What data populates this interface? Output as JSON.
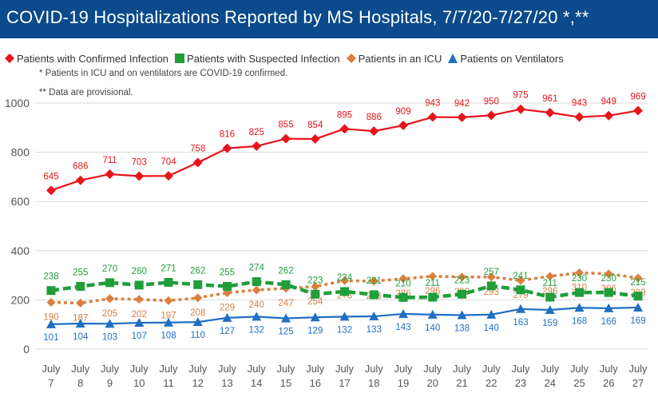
{
  "chart_data": {
    "type": "line",
    "title": "COVID-19 Hospitalizations Reported by MS Hospitals, 7/7/20-7/27/20 *,**",
    "notes": [
      "* Patients in ICU and on ventilators are COVID-19 confirmed.",
      "** Data are provisional."
    ],
    "categories": [
      [
        "July",
        "7"
      ],
      [
        "July",
        "8"
      ],
      [
        "July",
        "9"
      ],
      [
        "July",
        "10"
      ],
      [
        "July",
        "11"
      ],
      [
        "July",
        "12"
      ],
      [
        "July",
        "13"
      ],
      [
        "July",
        "14"
      ],
      [
        "July",
        "15"
      ],
      [
        "July",
        "16"
      ],
      [
        "July",
        "17"
      ],
      [
        "July",
        "18"
      ],
      [
        "July",
        "19"
      ],
      [
        "July",
        "20"
      ],
      [
        "July",
        "21"
      ],
      [
        "July",
        "22"
      ],
      [
        "July",
        "23"
      ],
      [
        "July",
        "24"
      ],
      [
        "July",
        "25"
      ],
      [
        "July",
        "26"
      ],
      [
        "July",
        "27"
      ]
    ],
    "ylim": [
      0,
      1000
    ],
    "yticks": [
      0,
      200,
      400,
      600,
      800,
      1000
    ],
    "grid": true,
    "legend_position": "top",
    "series": [
      {
        "name": "Patients with Confirmed Infection",
        "color": "#e8141b",
        "marker": "diamond",
        "line_style": "solid",
        "values": [
          645,
          686,
          711,
          703,
          704,
          758,
          816,
          825,
          855,
          854,
          895,
          886,
          909,
          943,
          942,
          950,
          975,
          961,
          943,
          949,
          969
        ]
      },
      {
        "name": "Patients with Suspected Infection",
        "color": "#1f9e3a",
        "marker": "square",
        "line_style": "dashed",
        "values": [
          238,
          255,
          270,
          260,
          271,
          262,
          255,
          274,
          262,
          223,
          234,
          221,
          210,
          211,
          223,
          257,
          241,
          211,
          230,
          230,
          215
        ]
      },
      {
        "name": "Patients in an ICU",
        "color": "#d9803f",
        "marker": "diamond",
        "line_style": "dotted",
        "values": [
          190,
          187,
          205,
          202,
          197,
          208,
          229,
          240,
          247,
          254,
          278,
          276,
          286,
          296,
          293,
          293,
          279,
          296,
          310,
          306,
          289
        ]
      },
      {
        "name": "Patients on Ventilators",
        "color": "#1f6fc4",
        "marker": "triangle",
        "line_style": "solid",
        "values": [
          101,
          104,
          103,
          107,
          108,
          110,
          127,
          132,
          125,
          129,
          132,
          133,
          143,
          140,
          138,
          140,
          163,
          159,
          168,
          166,
          169
        ]
      }
    ]
  }
}
